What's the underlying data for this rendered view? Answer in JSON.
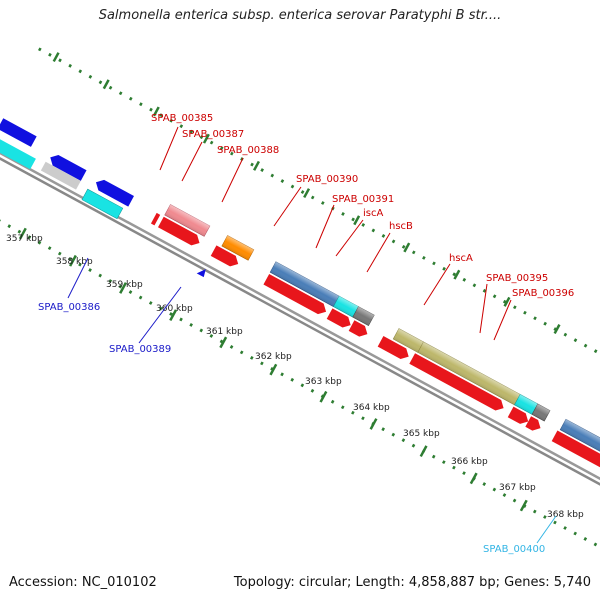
{
  "title": "Salmonella enterica subsp. enterica serovar Paratyphi B str....",
  "footer": {
    "accession": "Accession: NC_010102",
    "topology": "Topology: circular; Length: 4,858,887 bp; Genes: 5,740"
  },
  "colors": {
    "forward_cds": "#e8161c",
    "reverse_cds": "#1010e0",
    "tick": "#2e7d32",
    "backbone": "#888888",
    "label_red": "#cc0000",
    "label_blue": "#1a1ac8",
    "label_cyan": "#33b5e5"
  },
  "kbp_ticks": [
    "357 kbp",
    "358 kbp",
    "359 kbp",
    "360 kbp",
    "361 kbp",
    "362 kbp",
    "363 kbp",
    "364 kbp",
    "365 kbp",
    "366 kbp",
    "367 kbp",
    "368 kbp"
  ],
  "gene_labels": {
    "spab_00385": "SPAB_00385",
    "spab_00387": "SPAB_00387",
    "spab_00388": "SPAB_00388",
    "spab_00390": "SPAB_00390",
    "spab_00391": "SPAB_00391",
    "iscA_1": "iscA",
    "hscB": "hscB",
    "hscA": "hscA",
    "spab_00395": "SPAB_00395",
    "spab_00396": "SPAB_00396",
    "spab_00386": "SPAB_00386",
    "spab_00389": "SPAB_00389",
    "spab_00400": "SPAB_00400"
  }
}
